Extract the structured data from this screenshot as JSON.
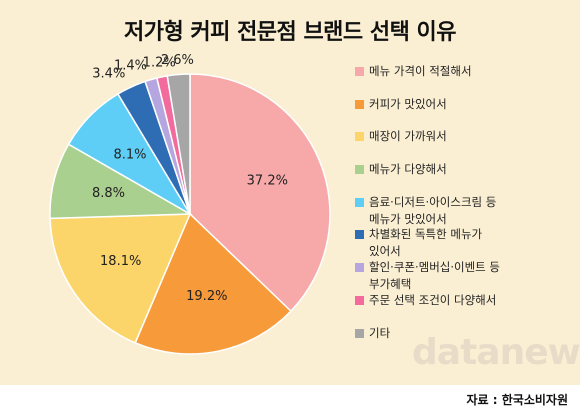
{
  "title": "저가형 커피 전문점 브랜드 선택 이유",
  "source": "자료 : 한국소비자원",
  "watermark": "datanews",
  "chart_data": {
    "type": "pie",
    "title": "저가형 커피 전문점 브랜드 선택 이유",
    "categories": [
      "메뉴 가격이 적절해서",
      "커피가 맛있어서",
      "매장이 가까워서",
      "메뉴가 다양해서",
      "음료·디저트·아이스크림 등\n메뉴가 맛있어서",
      "차별화된 독특한 메뉴가\n있어서",
      "할인·쿠폰·멤버십·이벤트 등\n부가혜택",
      "주문 선택 조건이 다양해서",
      "기타"
    ],
    "values": [
      37.2,
      19.2,
      18.1,
      8.8,
      8.1,
      3.4,
      1.4,
      1.2,
      2.6
    ],
    "data_labels": [
      "37.2%",
      "19.2%",
      "18.1%",
      "8.8%",
      "8.1%",
      "3.4%",
      "1.4%",
      "1.2%",
      "2.6%"
    ],
    "colors": [
      "#f7a9aa",
      "#f79a3a",
      "#fcd56a",
      "#a9d08e",
      "#5ecef6",
      "#2e6db4",
      "#b6a6e0",
      "#f26b9c",
      "#a6a6a6"
    ],
    "legend_position": "right"
  }
}
